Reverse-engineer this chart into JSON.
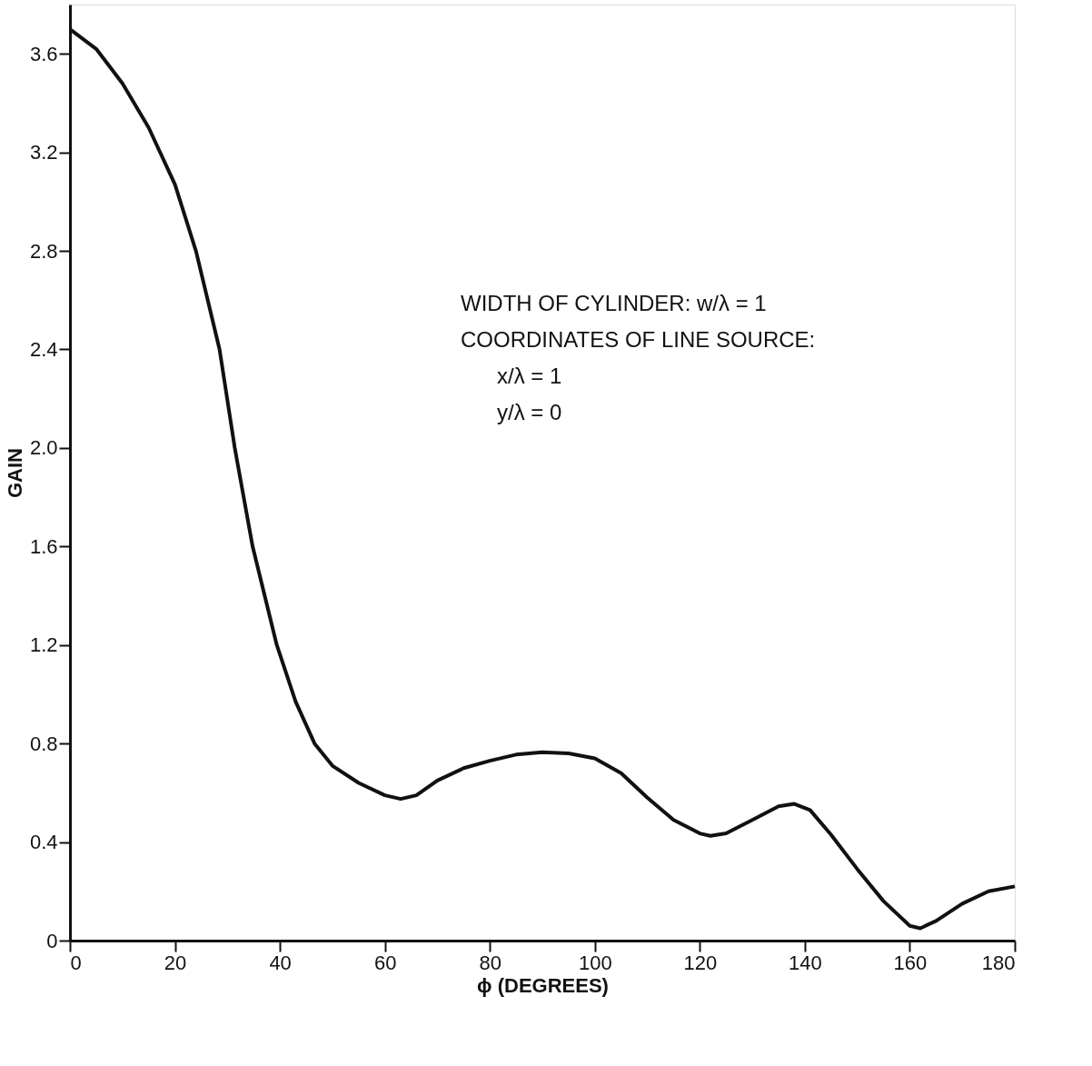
{
  "chart_data": {
    "type": "line",
    "xlabel": "ϕ (DEGREES)",
    "ylabel": "GAIN",
    "x": [
      0,
      5,
      10,
      15,
      20,
      24,
      28.5,
      31.4,
      34.8,
      39.4,
      43,
      46.6,
      50,
      55,
      60,
      63,
      66,
      70,
      75,
      80,
      85,
      90,
      95,
      100,
      105,
      110,
      115,
      120,
      122,
      125,
      130,
      135,
      138,
      141,
      145,
      150,
      155,
      160,
      162,
      165,
      170,
      175,
      180
    ],
    "series": [
      {
        "color": "#111111",
        "values": [
          3.7,
          3.62,
          3.48,
          3.3,
          3.07,
          2.8,
          2.4,
          2.0,
          1.6,
          1.2,
          0.97,
          0.8,
          0.71,
          0.64,
          0.59,
          0.575,
          0.59,
          0.65,
          0.7,
          0.73,
          0.755,
          0.765,
          0.76,
          0.74,
          0.68,
          0.58,
          0.49,
          0.435,
          0.425,
          0.435,
          0.49,
          0.545,
          0.555,
          0.53,
          0.43,
          0.29,
          0.16,
          0.06,
          0.05,
          0.08,
          0.15,
          0.2,
          0.22
        ]
      }
    ],
    "xlim": [
      0,
      180
    ],
    "xticks": [
      0,
      20,
      40,
      60,
      80,
      100,
      120,
      140,
      160,
      180
    ],
    "ylim": [
      0,
      3.8
    ],
    "yticks": [
      0,
      0.4,
      0.8,
      1.2,
      1.6,
      {
        "value": 2,
        "label": "2.0"
      },
      2.4,
      2.8,
      3.2,
      3.6
    ],
    "annotations": [
      "WIDTH OF CYLINDER: w/λ = 1",
      "COORDINATES OF LINE SOURCE:",
      "x/λ = 1",
      "y/λ = 0"
    ],
    "grid": false,
    "legend": false,
    "marker": "none",
    "line_style": "solid"
  }
}
